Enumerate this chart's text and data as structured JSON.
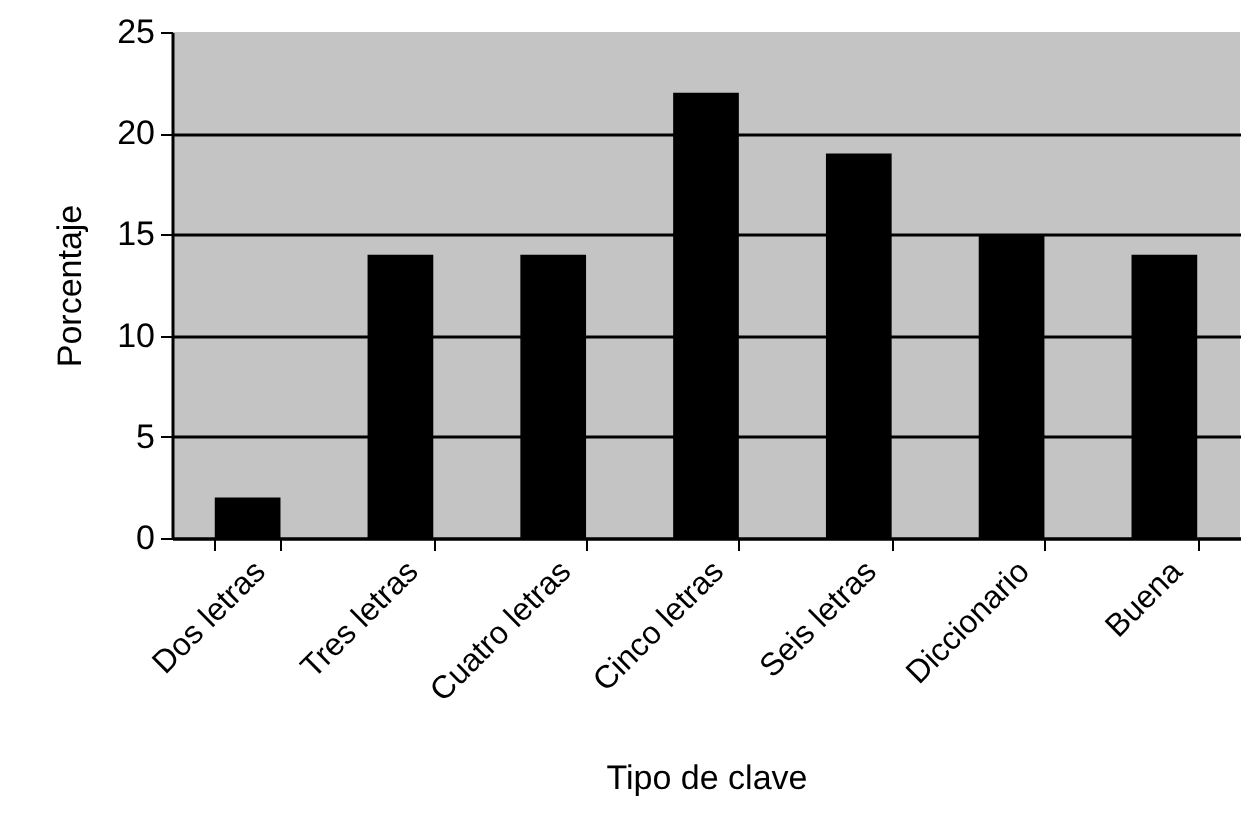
{
  "chart_data": {
    "type": "bar",
    "xlabel": "Tipo de clave",
    "ylabel": "Porcentaje",
    "categories": [
      "Dos letras",
      "Tres letras",
      "Cuatro letras",
      "Cinco letras",
      "Seis letras",
      "Diccionario",
      "Buena"
    ],
    "values": [
      2,
      14,
      14,
      22,
      19,
      15,
      14
    ],
    "color": "#000000",
    "ylim": [
      0,
      25
    ],
    "yticks": [
      0,
      5,
      10,
      15,
      20,
      25
    ],
    "grid": "y"
  }
}
